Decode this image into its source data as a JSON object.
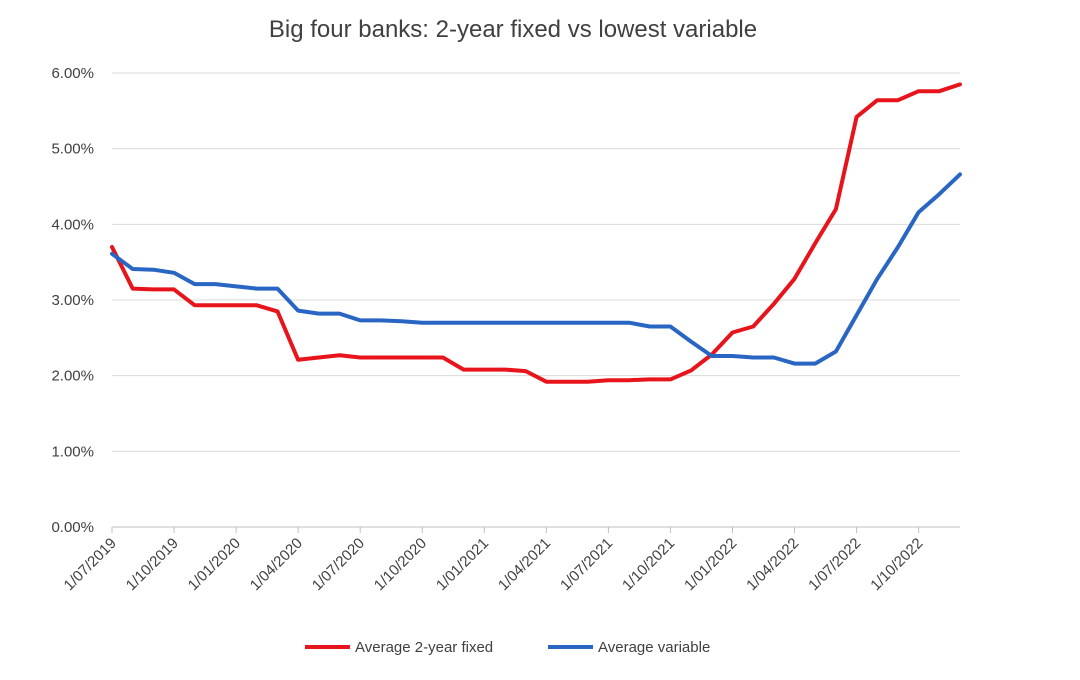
{
  "chart_data": {
    "type": "line",
    "title": "Big four banks: 2-year fixed vs lowest variable",
    "xlabel": "",
    "ylabel": "",
    "ylim": [
      0,
      0.06
    ],
    "y_ticks": [
      "0.00%",
      "1.00%",
      "2.00%",
      "3.00%",
      "4.00%",
      "5.00%",
      "6.00%"
    ],
    "x_ticks": [
      "1/07/2019",
      "1/10/2019",
      "1/01/2020",
      "1/04/2020",
      "1/07/2020",
      "1/10/2020",
      "1/01/2021",
      "1/04/2021",
      "1/07/2021",
      "1/10/2021",
      "1/01/2022",
      "1/04/2022",
      "1/07/2022",
      "1/10/2022"
    ],
    "grid": "horizontal",
    "legend_position": "bottom",
    "series": [
      {
        "name": "Average 2-year fixed",
        "color": "#e8141b",
        "points": [
          [
            "1/07/2019",
            3.7
          ],
          [
            "1/08/2019",
            3.15
          ],
          [
            "1/09/2019",
            3.14
          ],
          [
            "1/10/2019",
            3.14
          ],
          [
            "1/11/2019",
            2.93
          ],
          [
            "1/12/2019",
            2.93
          ],
          [
            "1/01/2020",
            2.93
          ],
          [
            "1/02/2020",
            2.93
          ],
          [
            "1/03/2020",
            2.85
          ],
          [
            "1/04/2020",
            2.21
          ],
          [
            "1/05/2020",
            2.24
          ],
          [
            "1/06/2020",
            2.27
          ],
          [
            "1/07/2020",
            2.24
          ],
          [
            "1/08/2020",
            2.24
          ],
          [
            "1/09/2020",
            2.24
          ],
          [
            "1/10/2020",
            2.24
          ],
          [
            "1/11/2020",
            2.24
          ],
          [
            "1/12/2020",
            2.08
          ],
          [
            "1/01/2021",
            2.08
          ],
          [
            "1/02/2021",
            2.08
          ],
          [
            "1/03/2021",
            2.06
          ],
          [
            "1/04/2021",
            1.92
          ],
          [
            "1/05/2021",
            1.92
          ],
          [
            "1/06/2021",
            1.92
          ],
          [
            "1/07/2021",
            1.94
          ],
          [
            "1/08/2021",
            1.94
          ],
          [
            "1/09/2021",
            1.95
          ],
          [
            "1/10/2021",
            1.95
          ],
          [
            "1/11/2021",
            2.07
          ],
          [
            "1/12/2021",
            2.28
          ],
          [
            "1/01/2022",
            2.57
          ],
          [
            "1/02/2022",
            2.65
          ],
          [
            "1/03/2022",
            2.95
          ],
          [
            "1/04/2022",
            3.28
          ],
          [
            "1/05/2022",
            3.75
          ],
          [
            "1/06/2022",
            4.2
          ],
          [
            "1/07/2022",
            5.42
          ],
          [
            "1/08/2022",
            5.64
          ],
          [
            "1/09/2022",
            5.64
          ],
          [
            "1/10/2022",
            5.76
          ],
          [
            "1/11/2022",
            5.76
          ],
          [
            "1/12/2022",
            5.85
          ]
        ]
      },
      {
        "name": "Average variable",
        "color": "#2966c4",
        "points": [
          [
            "1/07/2019",
            3.61
          ],
          [
            "1/08/2019",
            3.41
          ],
          [
            "1/09/2019",
            3.4
          ],
          [
            "1/10/2019",
            3.36
          ],
          [
            "1/11/2019",
            3.21
          ],
          [
            "1/12/2019",
            3.21
          ],
          [
            "1/01/2020",
            3.18
          ],
          [
            "1/02/2020",
            3.15
          ],
          [
            "1/03/2020",
            3.15
          ],
          [
            "1/04/2020",
            2.86
          ],
          [
            "1/05/2020",
            2.82
          ],
          [
            "1/06/2020",
            2.82
          ],
          [
            "1/07/2020",
            2.73
          ],
          [
            "1/08/2020",
            2.73
          ],
          [
            "1/09/2020",
            2.72
          ],
          [
            "1/10/2020",
            2.7
          ],
          [
            "1/11/2020",
            2.7
          ],
          [
            "1/12/2020",
            2.7
          ],
          [
            "1/01/2021",
            2.7
          ],
          [
            "1/02/2021",
            2.7
          ],
          [
            "1/03/2021",
            2.7
          ],
          [
            "1/04/2021",
            2.7
          ],
          [
            "1/05/2021",
            2.7
          ],
          [
            "1/06/2021",
            2.7
          ],
          [
            "1/07/2021",
            2.7
          ],
          [
            "1/08/2021",
            2.7
          ],
          [
            "1/09/2021",
            2.65
          ],
          [
            "1/10/2021",
            2.65
          ],
          [
            "1/11/2021",
            2.45
          ],
          [
            "1/12/2021",
            2.26
          ],
          [
            "1/01/2022",
            2.26
          ],
          [
            "1/02/2022",
            2.24
          ],
          [
            "1/03/2022",
            2.24
          ],
          [
            "1/04/2022",
            2.16
          ],
          [
            "1/05/2022",
            2.16
          ],
          [
            "1/06/2022",
            2.32
          ],
          [
            "1/07/2022",
            2.8
          ],
          [
            "1/08/2022",
            3.28
          ],
          [
            "1/09/2022",
            3.7
          ],
          [
            "1/10/2022",
            4.16
          ],
          [
            "1/11/2022",
            4.4
          ],
          [
            "1/12/2022",
            4.66
          ]
        ]
      }
    ],
    "legend": [
      {
        "label": "Average 2-year fixed",
        "color": "#e8141b"
      },
      {
        "label": "Average variable",
        "color": "#2966c4"
      }
    ]
  }
}
